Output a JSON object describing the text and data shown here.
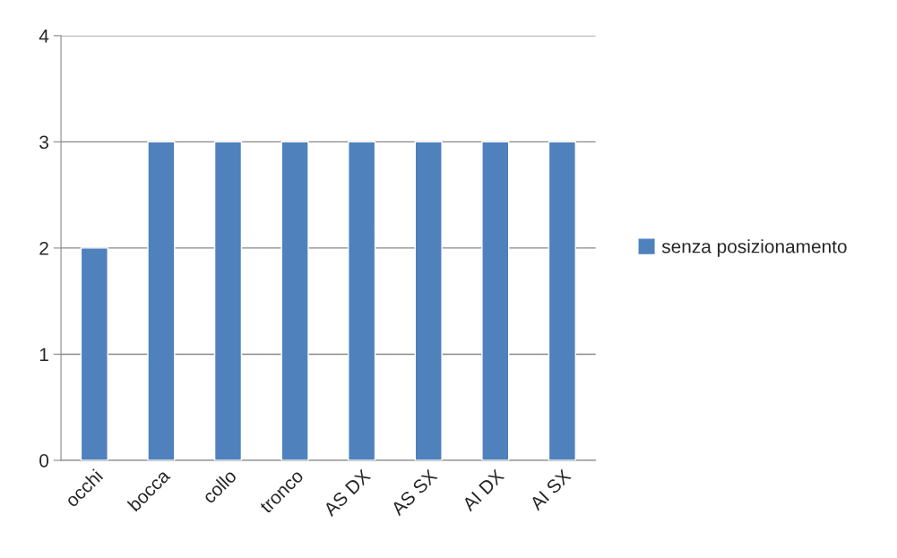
{
  "chart_data": {
    "type": "bar",
    "categories": [
      "occhi",
      "bocca",
      "collo",
      "tronco",
      "AS DX",
      "AS SX",
      "AI DX",
      "AI SX"
    ],
    "series": [
      {
        "name": "senza posizionamento",
        "color": "#4f81bd",
        "values": [
          2,
          3,
          3,
          3,
          3,
          3,
          3,
          3
        ]
      }
    ],
    "ylim": [
      0,
      4
    ],
    "yticks": [
      0,
      1,
      2,
      3,
      4
    ],
    "grid": "y",
    "legend": "right"
  }
}
